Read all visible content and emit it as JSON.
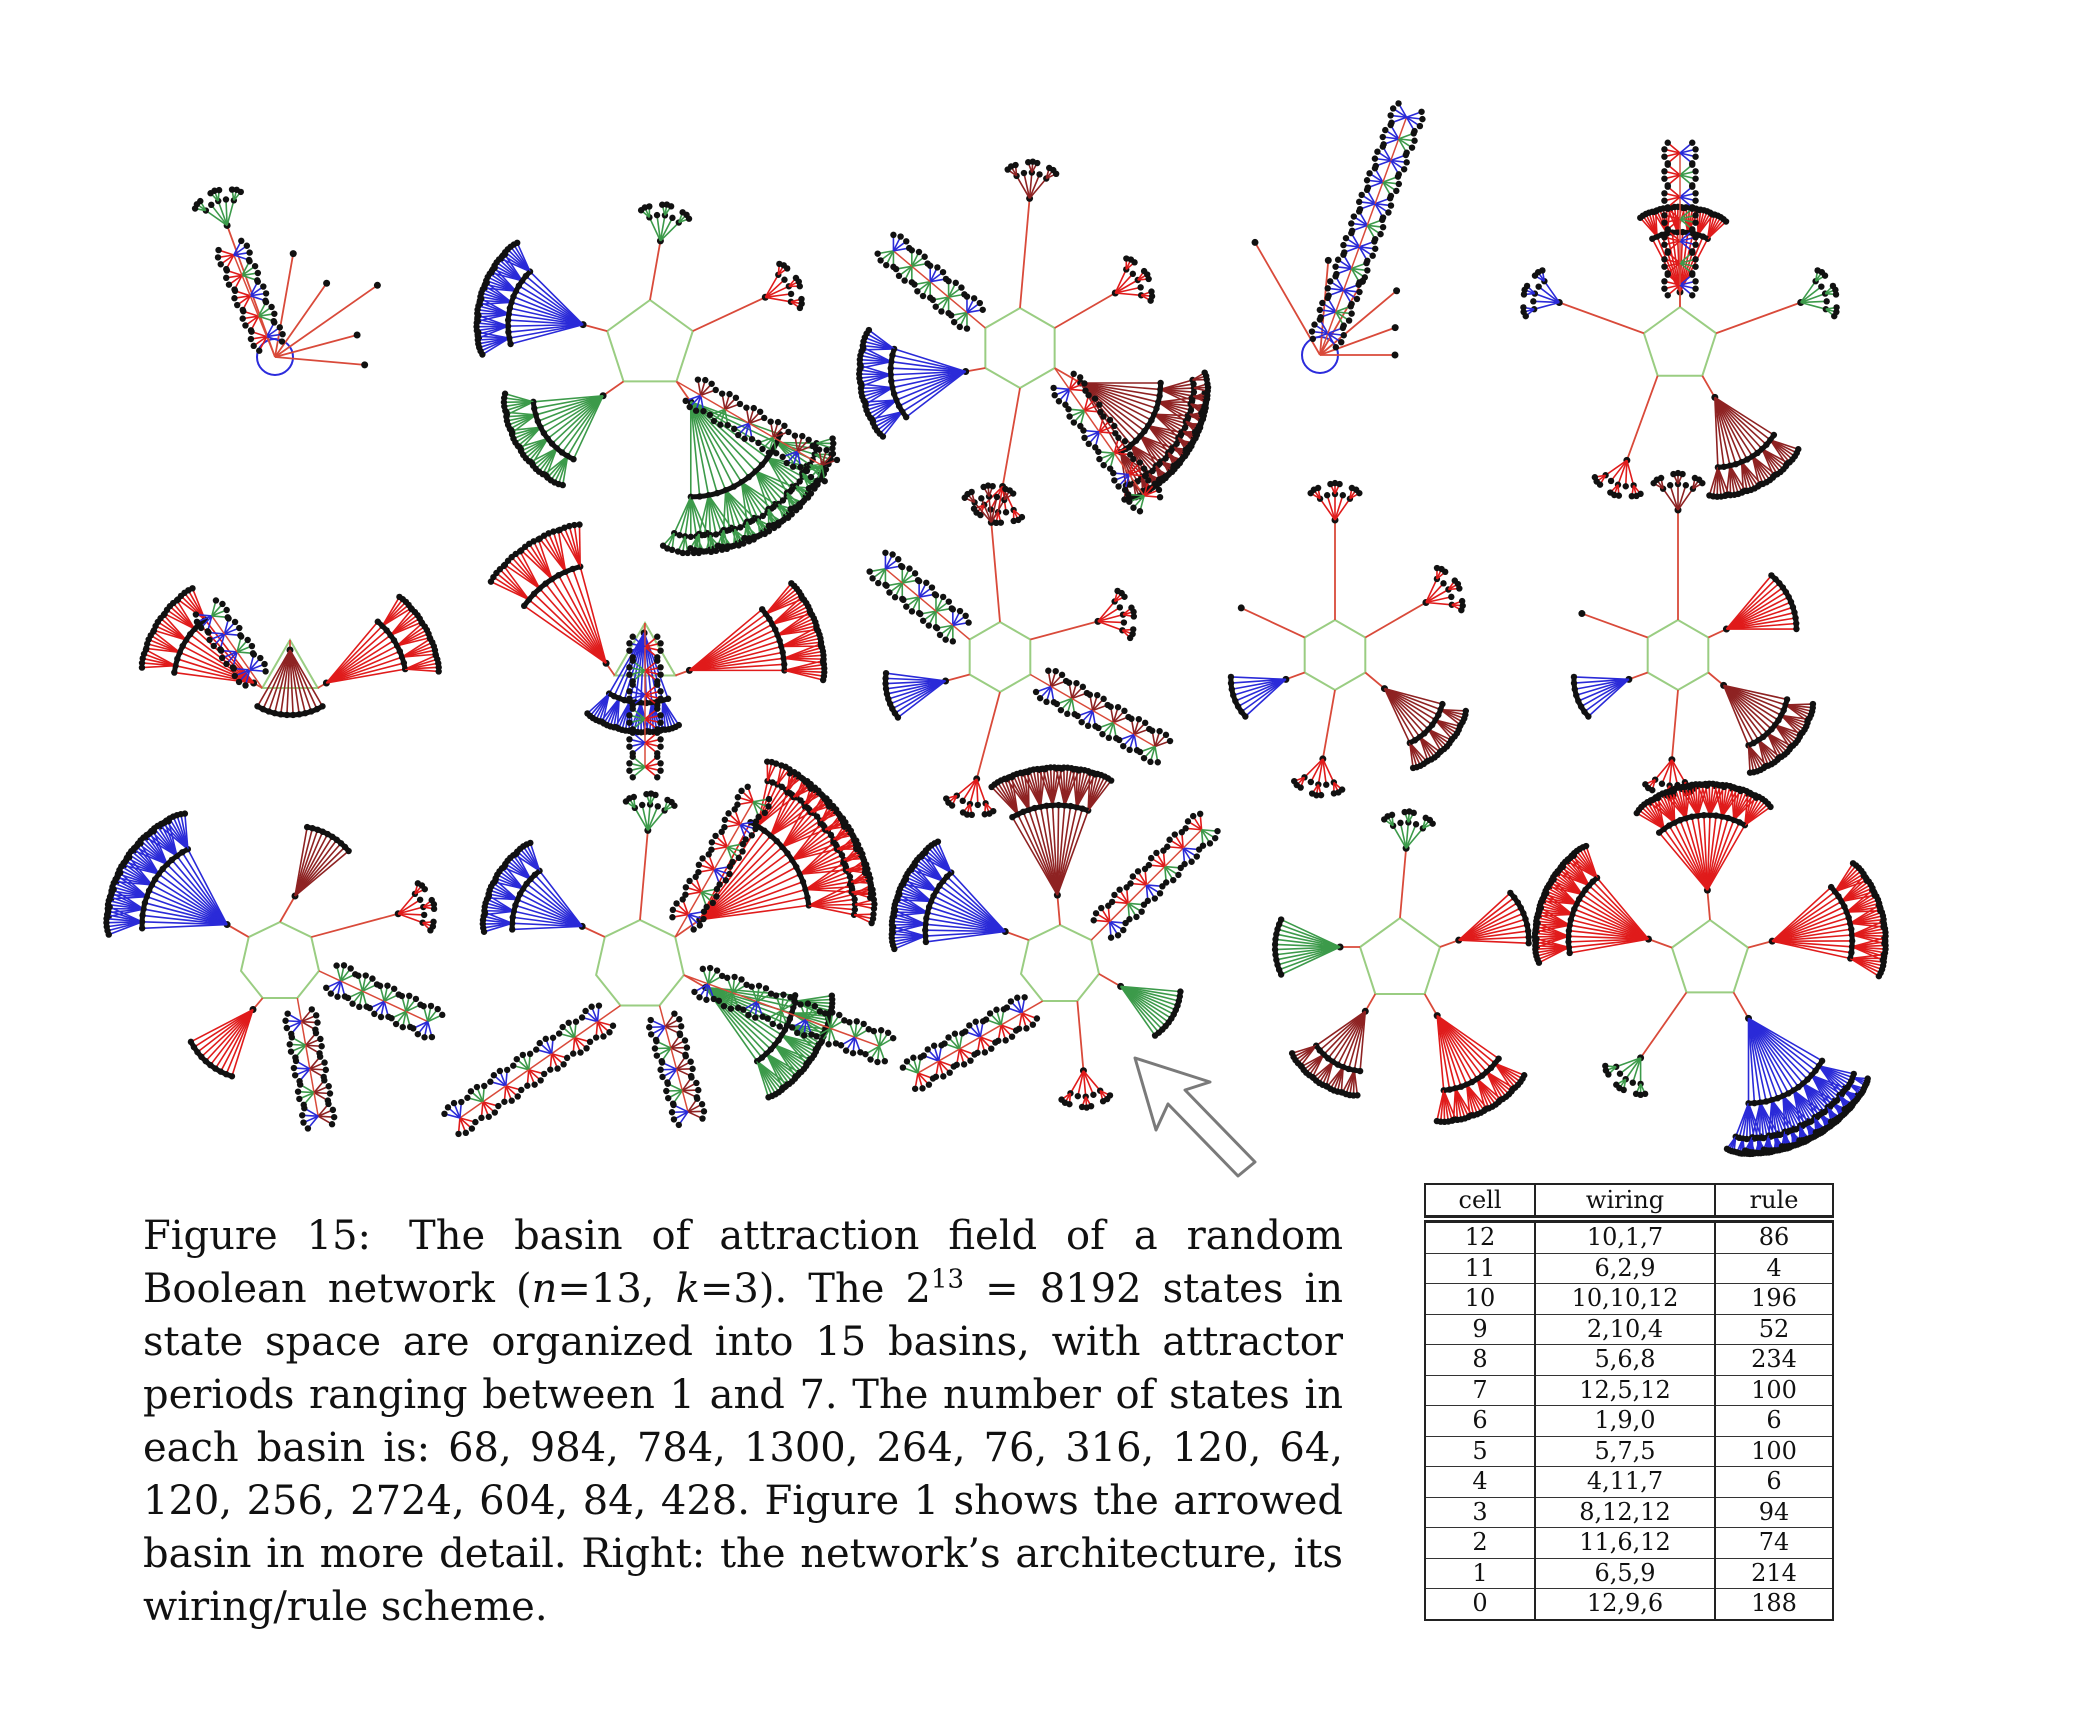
{
  "figure": {
    "basin_count": 15,
    "edge_colors": {
      "stem": "#d94a3a",
      "pale_edge": "#e6a0a0",
      "green": "#3c9a4a",
      "blue": "#2a2ad8",
      "red": "#e01b1b",
      "dark_red": "#8e2222",
      "cycle": "#9acd82",
      "node": "#111111",
      "attractor_ring": "#2b2bdc"
    },
    "pointer_arrow": "hollow-arrow pointing at the arrowed basin (row 3, column 3)"
  },
  "caption": {
    "label": "Figure 15:",
    "p1": "The basin of attraction field of a random Boolean network (",
    "n_var": "n",
    "p2": "=13, ",
    "k_var": "k",
    "p3": "=3).  The 2",
    "exponent": "13",
    "p4": " = 8192 states in state space are organized into 15 basins, with attractor periods ranging between 1 and 7. The number of states in each basin is: 68, 984, 784, 1300, 264, 76, 316, 120, 64, 120, 256, 2724, 604, 84, 428. Figure 1 shows the arrowed basin in more detail. Right: the network’s architecture, its wiring/rule scheme."
  },
  "table": {
    "headers": [
      "cell",
      "wiring",
      "rule"
    ],
    "rows": [
      [
        "12",
        "10,1,7",
        "86"
      ],
      [
        "11",
        "6,2,9",
        "4"
      ],
      [
        "10",
        "10,10,12",
        "196"
      ],
      [
        "9",
        "2,10,4",
        "52"
      ],
      [
        "8",
        "5,6,8",
        "234"
      ],
      [
        "7",
        "12,5,12",
        "100"
      ],
      [
        "6",
        "1,9,0",
        "6"
      ],
      [
        "5",
        "5,7,5",
        "100"
      ],
      [
        "4",
        "4,11,7",
        "6"
      ],
      [
        "3",
        "8,12,12",
        "94"
      ],
      [
        "2",
        "11,6,12",
        "74"
      ],
      [
        "1",
        "6,5,9",
        "214"
      ],
      [
        "0",
        "12,9,6",
        "188"
      ]
    ]
  }
}
